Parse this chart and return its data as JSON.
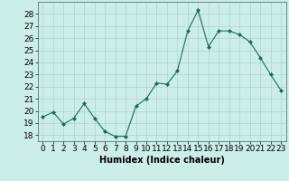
{
  "x": [
    0,
    1,
    2,
    3,
    4,
    5,
    6,
    7,
    8,
    9,
    10,
    11,
    12,
    13,
    14,
    15,
    16,
    17,
    18,
    19,
    20,
    21,
    22,
    23
  ],
  "y": [
    19.5,
    19.9,
    18.9,
    19.4,
    20.6,
    19.4,
    18.3,
    17.9,
    17.9,
    20.4,
    21.0,
    22.3,
    22.2,
    23.3,
    26.6,
    28.3,
    25.3,
    26.6,
    26.6,
    26.3,
    25.7,
    24.4,
    23.0,
    21.7
  ],
  "xlabel": "Humidex (Indice chaleur)",
  "ylim": [
    17.5,
    29.0
  ],
  "yticks": [
    18,
    19,
    20,
    21,
    22,
    23,
    24,
    25,
    26,
    27,
    28
  ],
  "xlim": [
    -0.5,
    23.5
  ],
  "xticks": [
    0,
    1,
    2,
    3,
    4,
    5,
    6,
    7,
    8,
    9,
    10,
    11,
    12,
    13,
    14,
    15,
    16,
    17,
    18,
    19,
    20,
    21,
    22,
    23
  ],
  "line_color": "#1a6b5a",
  "marker": "D",
  "marker_size": 2,
  "linewidth": 0.8,
  "bg_color": "#cceee8",
  "grid_color": "#aad4cc",
  "axis_label_fontsize": 7,
  "tick_fontsize": 6.5
}
